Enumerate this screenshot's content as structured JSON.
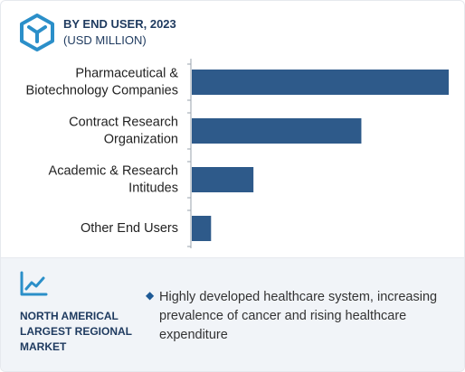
{
  "header": {
    "title": "BY END USER, 2023",
    "subtitle": "(USD MILLION)",
    "icon": "cube-logo-icon"
  },
  "chart_data": {
    "type": "bar",
    "orientation": "horizontal",
    "title": "BY END USER, 2023",
    "unit": "(USD MILLION)",
    "categories": [
      [
        "Pharmaceutical &",
        "Biotechnology Companies"
      ],
      [
        "Contract Research",
        "Organization"
      ],
      [
        "Academic & Research",
        "Intitudes"
      ],
      [
        "Other End Users"
      ]
    ],
    "values": [
      100,
      66,
      24,
      7.5
    ],
    "xlim": [
      0,
      100
    ],
    "value_axis_labels": false,
    "grid": false,
    "bar_color": "#2e5a8a"
  },
  "footer": {
    "icon": "trend-line-icon",
    "region_lines": [
      "NORTH AMERICAL",
      "LARGEST REGIONAL",
      "MARKET"
    ],
    "bullet_icon": "diamond-bullet-icon",
    "insight": "Highly developed healthcare system, increasing prevalence of cancer and rising healthcare expenditure"
  },
  "colors": {
    "accent": "#1e5a96",
    "navy_text": "#1e3a5f",
    "bar": "#2e5a8a",
    "footer_bg": "#f1f4f8"
  }
}
